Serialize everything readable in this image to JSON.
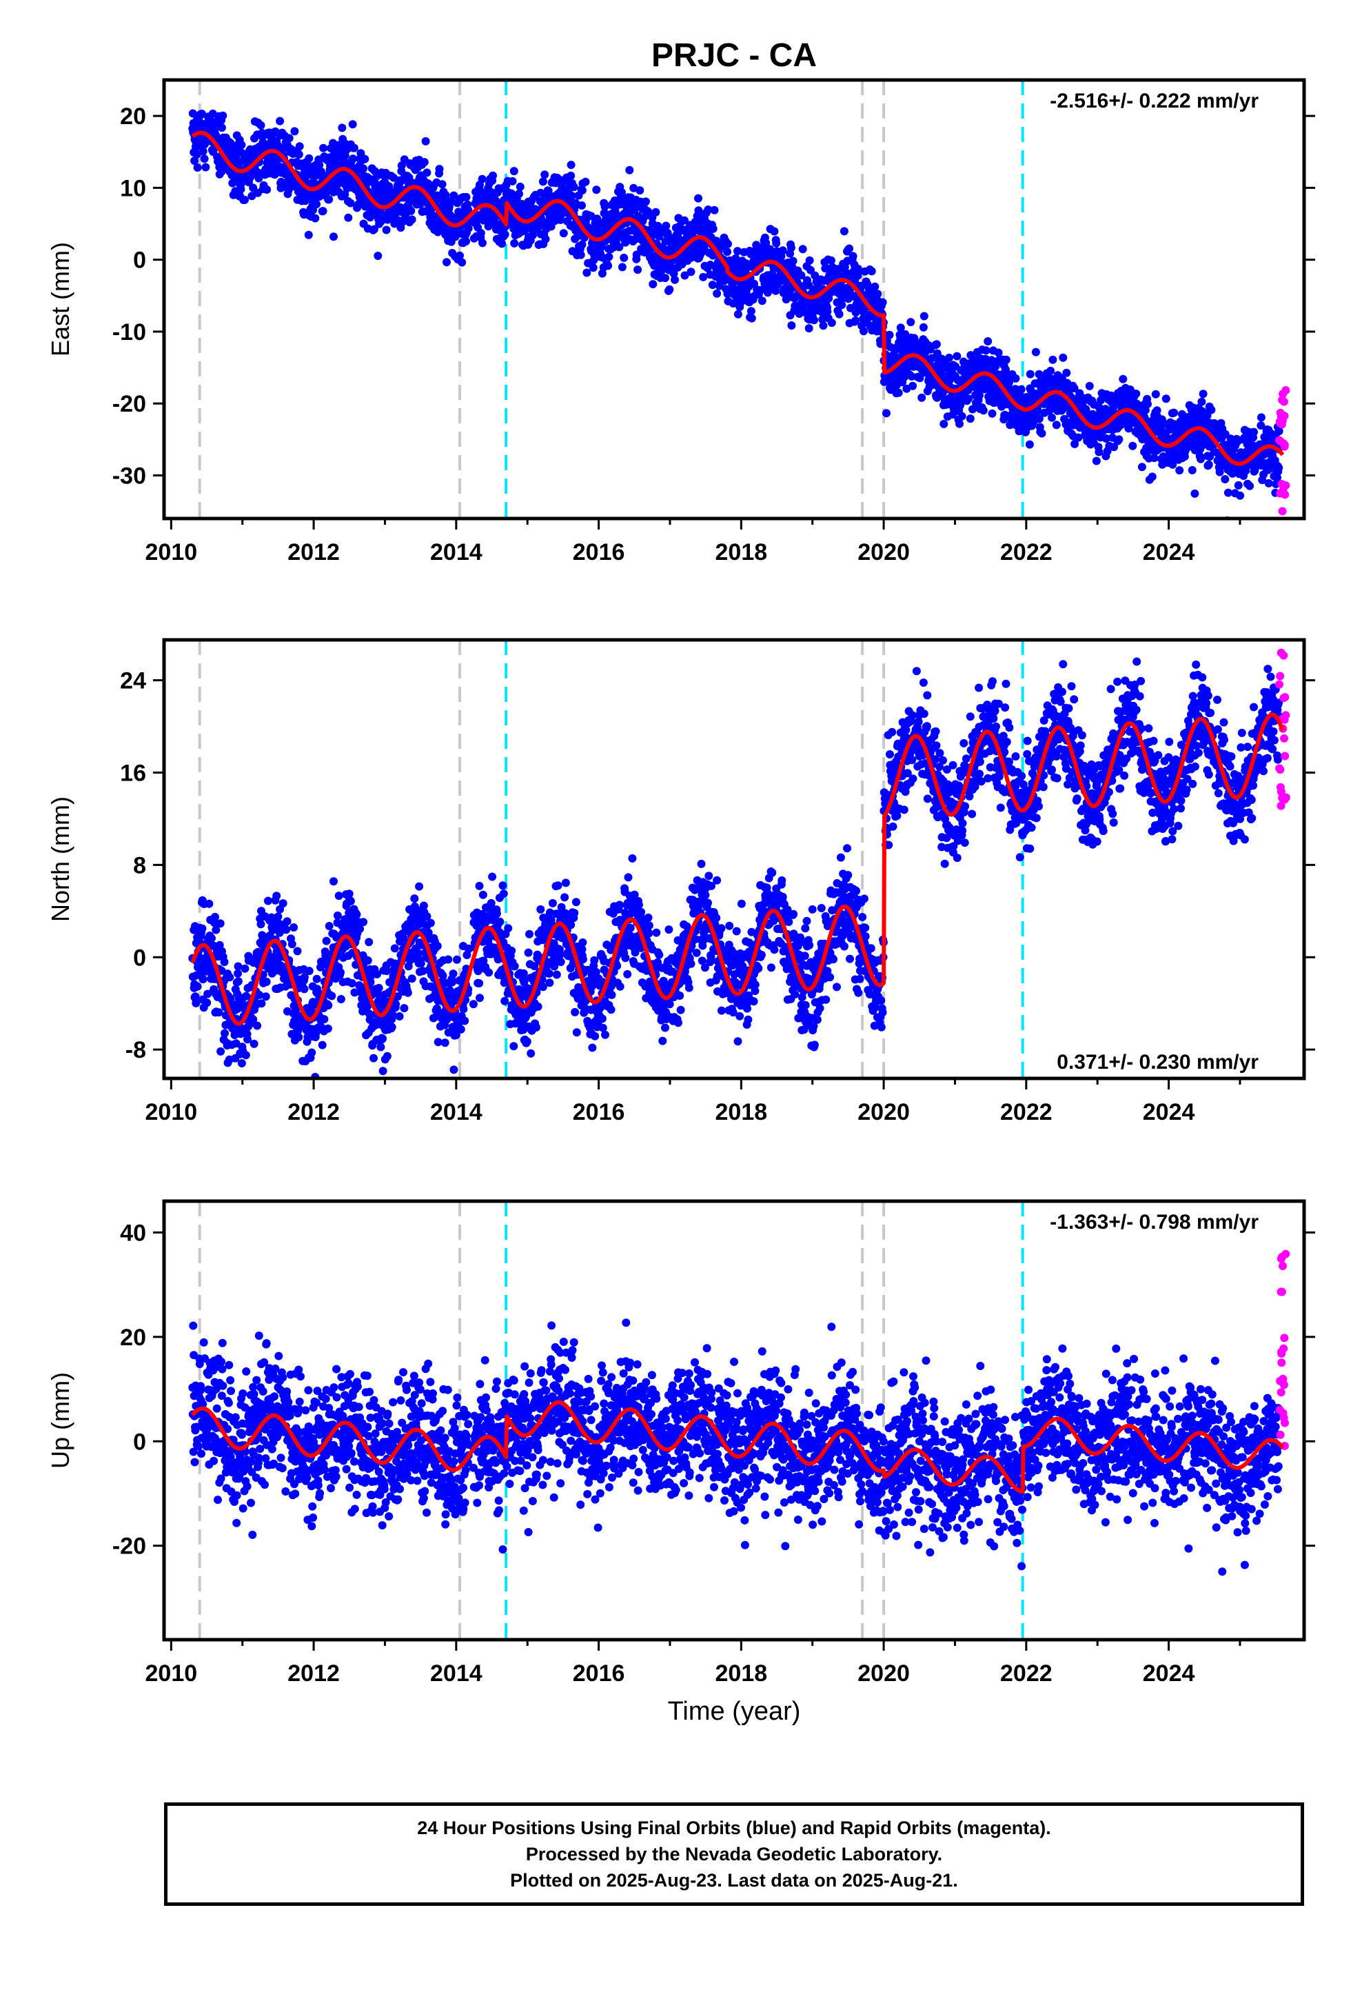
{
  "title": "PRJC - CA",
  "xlabel": "Time (year)",
  "colors": {
    "final_orbits": "#0000ff",
    "rapid_orbits": "#ff00ff",
    "model_fit": "#ff0000",
    "event_gray": "#c8c8c8",
    "event_cyan": "#00e5ff"
  },
  "caption": {
    "line1": "24 Hour Positions Using Final Orbits (blue) and Rapid Orbits (magenta).",
    "line2": "Processed by the Nevada Geodetic Laboratory.",
    "line3": "Plotted on 2025-Aug-23. Last data on 2025-Aug-21."
  },
  "chart_data": [
    {
      "type": "scatter",
      "ylabel": "East (mm)",
      "rate_label": "-2.516+/- 0.222 mm/yr",
      "rate_label_position": "top-right",
      "xlim": [
        2009.9,
        2025.9
      ],
      "ylim": [
        -36,
        25
      ],
      "xticks": [
        2010,
        2012,
        2014,
        2016,
        2018,
        2020,
        2022,
        2024
      ],
      "yticks": [
        20,
        10,
        0,
        -10,
        -20,
        -30
      ],
      "events_gray": [
        2010.4,
        2014.05,
        2019.7,
        2020.0
      ],
      "events_cyan": [
        2014.7,
        2021.95
      ],
      "rapid_x": [
        2025.55,
        2025.65
      ],
      "rapid_y_range": [
        -35,
        -16
      ],
      "model": {
        "rate": -2.516,
        "segments": [
          {
            "start": 2010.3,
            "end": 2014.7,
            "intercept": 16.0,
            "amplitude": 2.0
          },
          {
            "start": 2014.7,
            "end": 2017.8,
            "intercept": 8.0,
            "amplitude": 2.0
          },
          {
            "start": 2017.8,
            "end": 2020.0,
            "intercept": -0.5,
            "amplitude": 1.8
          },
          {
            "start": 2020.0,
            "end": 2021.95,
            "intercept": -14.0,
            "amplitude": 1.8
          },
          {
            "start": 2021.95,
            "end": 2025.6,
            "intercept": -19.0,
            "amplitude": 1.8
          }
        ]
      },
      "scatter_noise_mm": 2.2
    },
    {
      "type": "scatter",
      "ylabel": "North (mm)",
      "rate_label": "0.371+/- 0.230 mm/yr",
      "rate_label_position": "bottom-right",
      "xlim": [
        2009.9,
        2025.9
      ],
      "ylim": [
        -10.5,
        27.5
      ],
      "xticks": [
        2010,
        2012,
        2014,
        2016,
        2018,
        2020,
        2022,
        2024
      ],
      "yticks": [
        24,
        16,
        8,
        0,
        -8
      ],
      "events_gray": [
        2010.4,
        2014.05,
        2019.7,
        2020.0
      ],
      "events_cyan": [
        2014.7,
        2021.95
      ],
      "rapid_x": [
        2025.55,
        2025.65
      ],
      "rapid_y_range": [
        13,
        27
      ],
      "model": {
        "rate": 0.371,
        "segments": [
          {
            "start": 2010.3,
            "end": 2020.0,
            "intercept": -2.5,
            "amplitude": 3.5
          },
          {
            "start": 2020.0,
            "end": 2025.6,
            "intercept": 15.5,
            "amplitude": 3.5
          }
        ]
      },
      "scatter_noise_mm": 2.0
    },
    {
      "type": "scatter",
      "ylabel": "Up (mm)",
      "rate_label": "-1.363+/- 0.798 mm/yr",
      "rate_label_position": "top-right",
      "xlim": [
        2009.9,
        2025.9
      ],
      "ylim": [
        -38,
        46
      ],
      "xticks": [
        2010,
        2012,
        2014,
        2016,
        2018,
        2020,
        2022,
        2024
      ],
      "yticks": [
        40,
        20,
        0,
        -20
      ],
      "events_gray": [
        2010.4,
        2014.05,
        2019.7,
        2020.0
      ],
      "events_cyan": [
        2014.7,
        2021.95
      ],
      "rapid_x": [
        2025.55,
        2025.65
      ],
      "rapid_y_range": [
        -2,
        36
      ],
      "model": {
        "rate": -1.363,
        "segments": [
          {
            "start": 2010.3,
            "end": 2014.7,
            "intercept": 3.0,
            "amplitude": 3.5
          },
          {
            "start": 2014.7,
            "end": 2020.0,
            "intercept": 5.0,
            "amplitude": 3.5
          },
          {
            "start": 2020.0,
            "end": 2021.95,
            "intercept": -4.0,
            "amplitude": 3.0
          },
          {
            "start": 2021.95,
            "end": 2025.6,
            "intercept": 2.0,
            "amplitude": 3.0
          }
        ]
      },
      "scatter_noise_mm": 6.0
    }
  ]
}
